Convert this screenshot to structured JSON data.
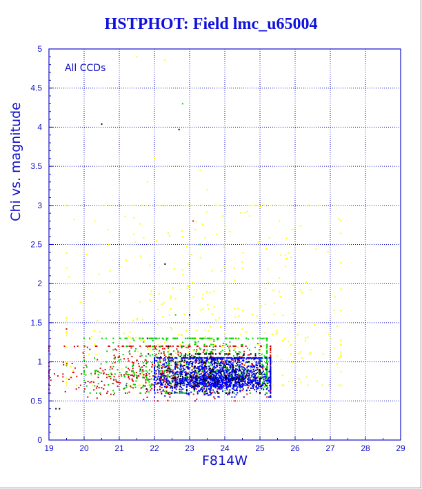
{
  "title": "HSTPHOT: Field lmc_u65004",
  "chart_data": {
    "type": "scatter",
    "title": "HSTPHOT: Field lmc_u65004",
    "xlabel": "F814W",
    "ylabel": "Chi vs. magnitude",
    "annotation": "All CCDs",
    "xlim": [
      19,
      29
    ],
    "ylim": [
      0,
      5
    ],
    "x_ticks": [
      "19",
      "20",
      "21",
      "22",
      "23",
      "24",
      "25",
      "26",
      "27",
      "28",
      "29"
    ],
    "y_ticks": [
      "0",
      "0.5",
      "1",
      "1.5",
      "2",
      "2.5",
      "3",
      "3.5",
      "4",
      "4.5",
      "5"
    ],
    "grid": true,
    "series": [
      {
        "color": "#0000ff",
        "density_core": {
          "x_range": [
            22.0,
            25.3
          ],
          "y_range": [
            0.55,
            1.05
          ],
          "center": [
            23.8,
            0.8
          ]
        },
        "points": [
          [
            20.5,
            0.75
          ],
          [
            21.2,
            0.7
          ],
          [
            21.6,
            0.9
          ],
          [
            22.1,
            0.72
          ],
          [
            22.6,
            0.85
          ],
          [
            23.0,
            0.78
          ],
          [
            23.4,
            0.82
          ],
          [
            23.8,
            0.75
          ],
          [
            24.2,
            0.88
          ],
          [
            24.6,
            0.8
          ],
          [
            25.0,
            0.72
          ],
          [
            25.2,
            0.9
          ],
          [
            23.6,
            1.1
          ],
          [
            22.9,
            0.6
          ],
          [
            24.9,
            0.62
          ]
        ]
      },
      {
        "color": "#00d000",
        "density_core": {
          "x_range": [
            20.0,
            25.2
          ],
          "y_range": [
            0.6,
            1.3
          ],
          "center": [
            23.2,
            0.9
          ]
        },
        "points": [
          [
            19.5,
            0.95
          ],
          [
            20.2,
            0.85
          ],
          [
            21.0,
            1.0
          ],
          [
            21.8,
            1.2
          ],
          [
            22.4,
            1.05
          ],
          [
            23.0,
            1.3
          ],
          [
            23.5,
            1.15
          ],
          [
            24.0,
            1.1
          ],
          [
            24.7,
            1.05
          ],
          [
            25.0,
            1.0
          ],
          [
            22.8,
            4.3
          ],
          [
            23.3,
            2.5
          ],
          [
            22.6,
            1.6
          ]
        ]
      },
      {
        "color": "#e00000",
        "density_core": {
          "x_range": [
            19.0,
            25.3
          ],
          "y_range": [
            0.5,
            1.2
          ],
          "center": [
            22.8,
            0.85
          ]
        },
        "points": [
          [
            19.0,
            0.6
          ],
          [
            19.4,
            0.75
          ],
          [
            19.9,
            0.7
          ],
          [
            20.6,
            0.9
          ],
          [
            21.3,
            1.1
          ],
          [
            22.0,
            0.8
          ],
          [
            22.7,
            1.0
          ],
          [
            23.1,
            2.8
          ],
          [
            23.9,
            0.95
          ],
          [
            24.5,
            0.7
          ],
          [
            25.2,
            0.55
          ],
          [
            19.5,
            1.42
          ]
        ]
      },
      {
        "color": "#ffff00",
        "density_core": {
          "x_range": [
            19.5,
            27.3
          ],
          "y_range": [
            0.7,
            3.0
          ],
          "center": [
            23.5,
            1.4
          ]
        },
        "points": [
          [
            20.3,
            2.8
          ],
          [
            21.5,
            4.9
          ],
          [
            22.3,
            4.86
          ],
          [
            22.0,
            3.6
          ],
          [
            21.8,
            3.3
          ],
          [
            23.3,
            3.45
          ],
          [
            23.5,
            3.2
          ],
          [
            24.0,
            3.0
          ],
          [
            22.8,
            2.6
          ],
          [
            24.5,
            2.2
          ],
          [
            25.2,
            1.5
          ],
          [
            25.7,
            1.3
          ],
          [
            26.2,
            1.05
          ],
          [
            26.8,
            1.1
          ],
          [
            27.2,
            0.97
          ],
          [
            27.3,
            1.1
          ],
          [
            21.2,
            2.3
          ],
          [
            22.5,
            2.0
          ],
          [
            20.7,
            2.5
          ],
          [
            23.7,
            1.9
          ]
        ]
      },
      {
        "color": "#000000",
        "density_core": {
          "x_range": [
            21.5,
            25.0
          ],
          "y_range": [
            0.6,
            1.1
          ],
          "center": [
            23.5,
            0.82
          ]
        },
        "points": [
          [
            20.5,
            4.04
          ],
          [
            22.7,
            3.97
          ],
          [
            22.3,
            2.25
          ],
          [
            19.2,
            0.4
          ],
          [
            19.3,
            0.4
          ],
          [
            21.8,
            1.3
          ],
          [
            23.0,
            1.6
          ],
          [
            22.4,
            1.2
          ]
        ]
      }
    ]
  }
}
